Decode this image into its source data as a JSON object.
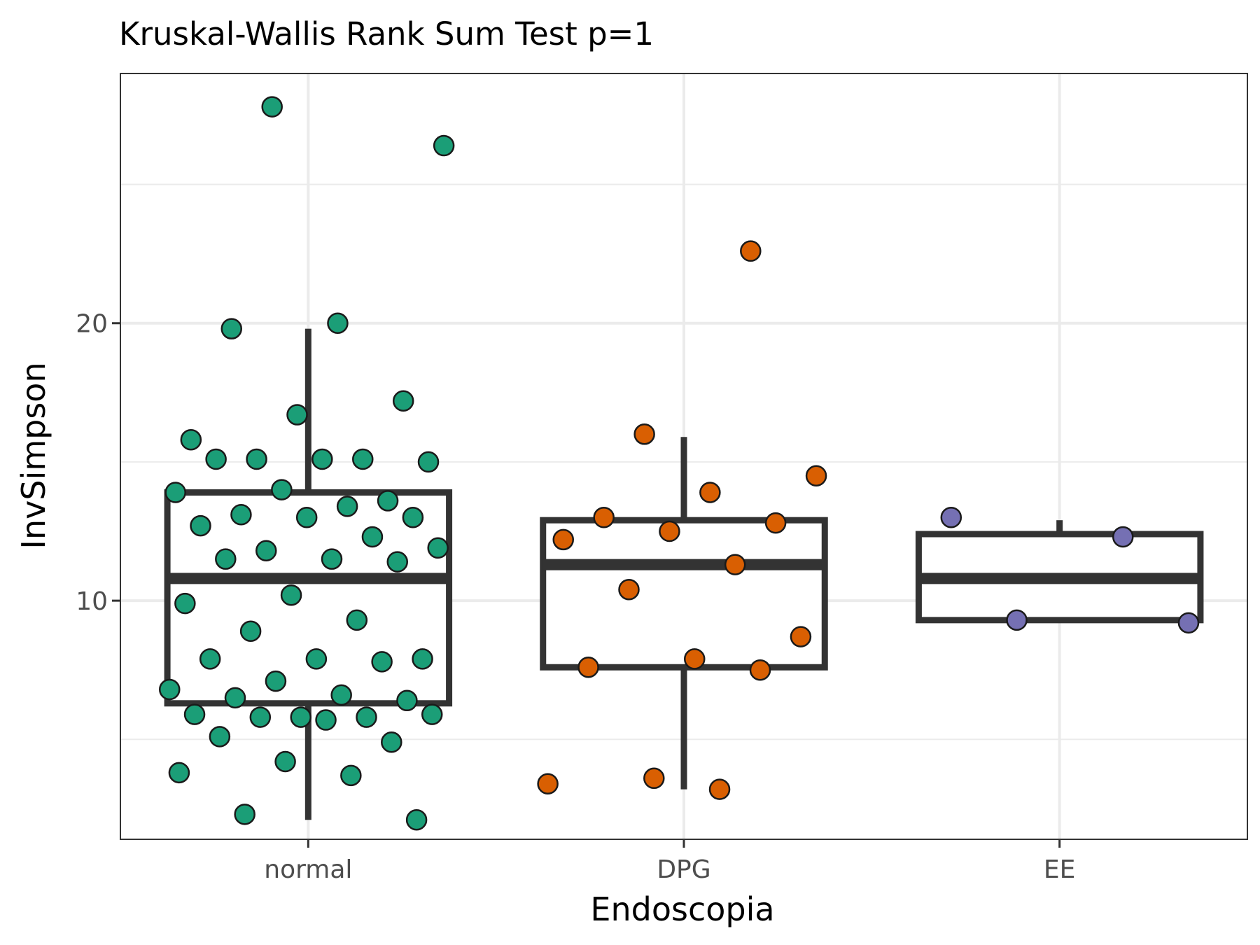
{
  "chart_data": {
    "type": "boxplot",
    "title": "Kruskal-Wallis Rank Sum Test p=1",
    "xlabel": "Endoscopia",
    "ylabel": "InvSimpson",
    "categories": [
      "normal",
      "DPG",
      "EE"
    ],
    "ylim": [
      1.4,
      29.0
    ],
    "yticks": [
      10,
      20
    ],
    "grid": true,
    "colors": {
      "normal": "#1b9e77",
      "DPG": "#d95f02",
      "EE": "#7570b3",
      "box": "#333333",
      "grid": "#ebebeb",
      "panel_border": "#333333",
      "point_outline": "#1a1a1a"
    },
    "boxes": [
      {
        "group": "normal",
        "whisker_low": 2.1,
        "q1": 6.3,
        "median": 10.8,
        "q3": 13.9,
        "whisker_high": 19.8
      },
      {
        "group": "DPG",
        "whisker_low": 3.2,
        "q1": 7.6,
        "median": 11.3,
        "q3": 12.9,
        "whisker_high": 15.9
      },
      {
        "group": "EE",
        "whisker_low": 9.2,
        "q1": 9.3,
        "median": 10.8,
        "q3": 12.4,
        "whisker_high": 12.9
      }
    ],
    "points": [
      {
        "group": "normal",
        "values": [
          27.8,
          26.4,
          20.0,
          19.8,
          17.2,
          16.7,
          15.8,
          15.1,
          15.1,
          15.0,
          15.1,
          15.1,
          13.6,
          14.0,
          13.9,
          13.4,
          13.1,
          13.0,
          13.0,
          12.7,
          12.3,
          11.8,
          11.9,
          11.5,
          11.5,
          11.4,
          10.2,
          9.9,
          9.3,
          8.9,
          7.9,
          7.9,
          7.9,
          7.8,
          7.1,
          6.8,
          6.6,
          6.5,
          6.4,
          5.8,
          5.9,
          5.8,
          5.8,
          5.9,
          5.7,
          5.1,
          4.9,
          4.2,
          3.8,
          3.7,
          2.3,
          2.1
        ]
      },
      {
        "group": "DPG",
        "values": [
          22.6,
          16.0,
          14.5,
          13.9,
          13.0,
          12.8,
          12.5,
          12.2,
          11.3,
          10.4,
          8.7,
          7.9,
          7.6,
          7.5,
          3.6,
          3.4,
          3.2
        ]
      },
      {
        "group": "EE",
        "values": [
          13.0,
          12.3,
          9.3,
          9.2
        ]
      }
    ]
  }
}
